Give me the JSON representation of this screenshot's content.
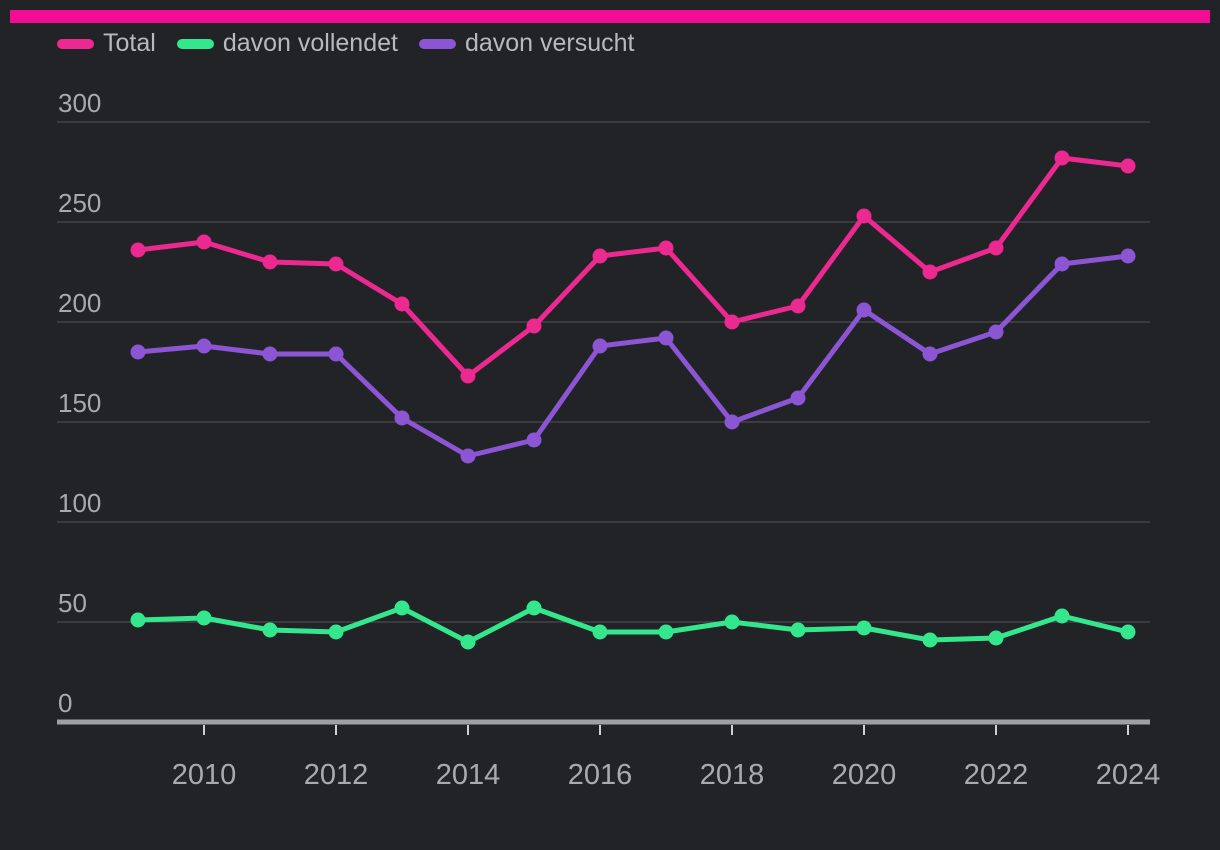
{
  "page": {
    "colors": {
      "background": "#222327",
      "top_bar": "#f20d94",
      "grid": "#55555a",
      "axis_line": "#9fa0a4",
      "tick": "#cfcfd2",
      "axis_text": "#aaaaad",
      "legend_text": "#b9b9bc"
    }
  },
  "legend": {
    "items": [
      {
        "label": "Total",
        "color": "#ec2991"
      },
      {
        "label": "davon vollendet",
        "color": "#34e78c"
      },
      {
        "label": "davon versucht",
        "color": "#8c55d4"
      }
    ]
  },
  "chart_data": {
    "type": "line",
    "x": [
      2009,
      2010,
      2011,
      2012,
      2013,
      2014,
      2015,
      2016,
      2017,
      2018,
      2019,
      2020,
      2021,
      2022,
      2023,
      2024
    ],
    "series": [
      {
        "name": "Total",
        "color": "#ec2991",
        "values": [
          236,
          240,
          230,
          229,
          209,
          173,
          198,
          233,
          237,
          200,
          208,
          253,
          225,
          237,
          282,
          278
        ]
      },
      {
        "name": "davon vollendet",
        "color": "#34e78c",
        "values": [
          51,
          52,
          46,
          45,
          57,
          40,
          57,
          45,
          45,
          50,
          46,
          47,
          41,
          42,
          53,
          45
        ]
      },
      {
        "name": "davon versucht",
        "color": "#8c55d4",
        "values": [
          185,
          188,
          184,
          184,
          152,
          133,
          141,
          188,
          192,
          150,
          162,
          206,
          184,
          195,
          229,
          233
        ]
      }
    ],
    "title": "",
    "xlabel": "",
    "ylabel": "",
    "ylim": [
      0,
      300
    ],
    "yticks": [
      0,
      50,
      100,
      150,
      200,
      250,
      300
    ],
    "xtick_labels": [
      2010,
      2012,
      2014,
      2016,
      2018,
      2020,
      2022,
      2024
    ],
    "grid": true,
    "legend_position": "top"
  }
}
